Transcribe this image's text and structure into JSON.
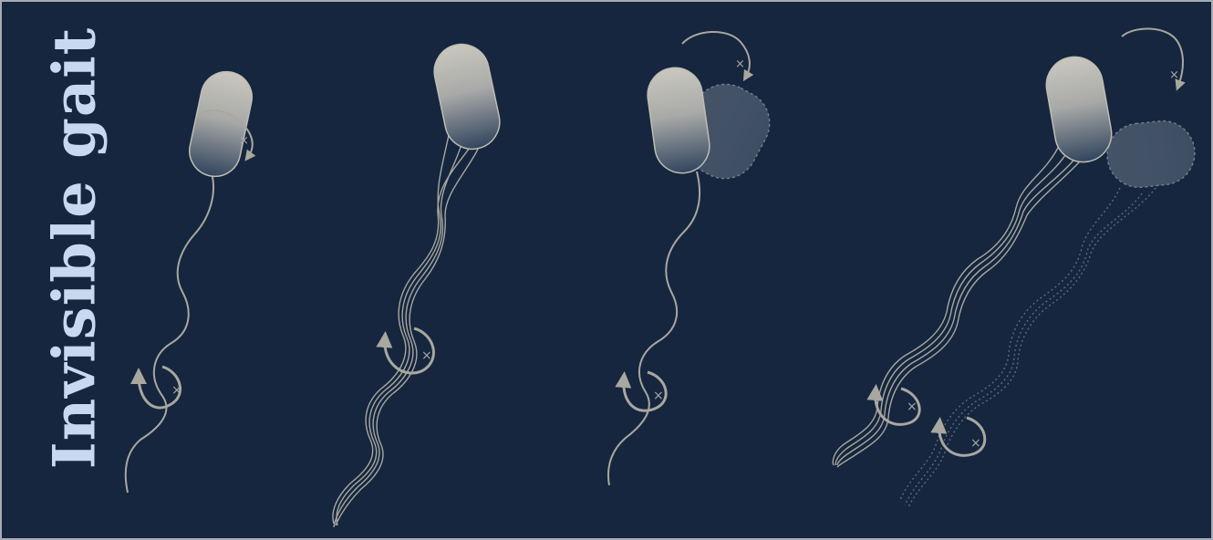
{
  "title": "Invisible gait",
  "colors": {
    "background": "#15263e",
    "border": "#a7acb3",
    "title": "#c7d9ef",
    "cell_light": "#c9c7bf",
    "cell_dark": "#31455e",
    "flagellum": "#a8a7a0",
    "ghost": "#5d6b7c"
  },
  "panels": [
    {
      "id": "panel-1",
      "flagellum_strands": 1,
      "ghost_cell": false
    },
    {
      "id": "panel-2",
      "flagellum_strands": 3,
      "ghost_cell": false
    },
    {
      "id": "panel-3",
      "flagellum_strands": 1,
      "ghost_cell": true
    },
    {
      "id": "panel-4",
      "flagellum_strands": 3,
      "ghost_cell": true
    }
  ],
  "icons": [
    "rotation-arrow-icon",
    "rotation-axis-cross-icon"
  ]
}
